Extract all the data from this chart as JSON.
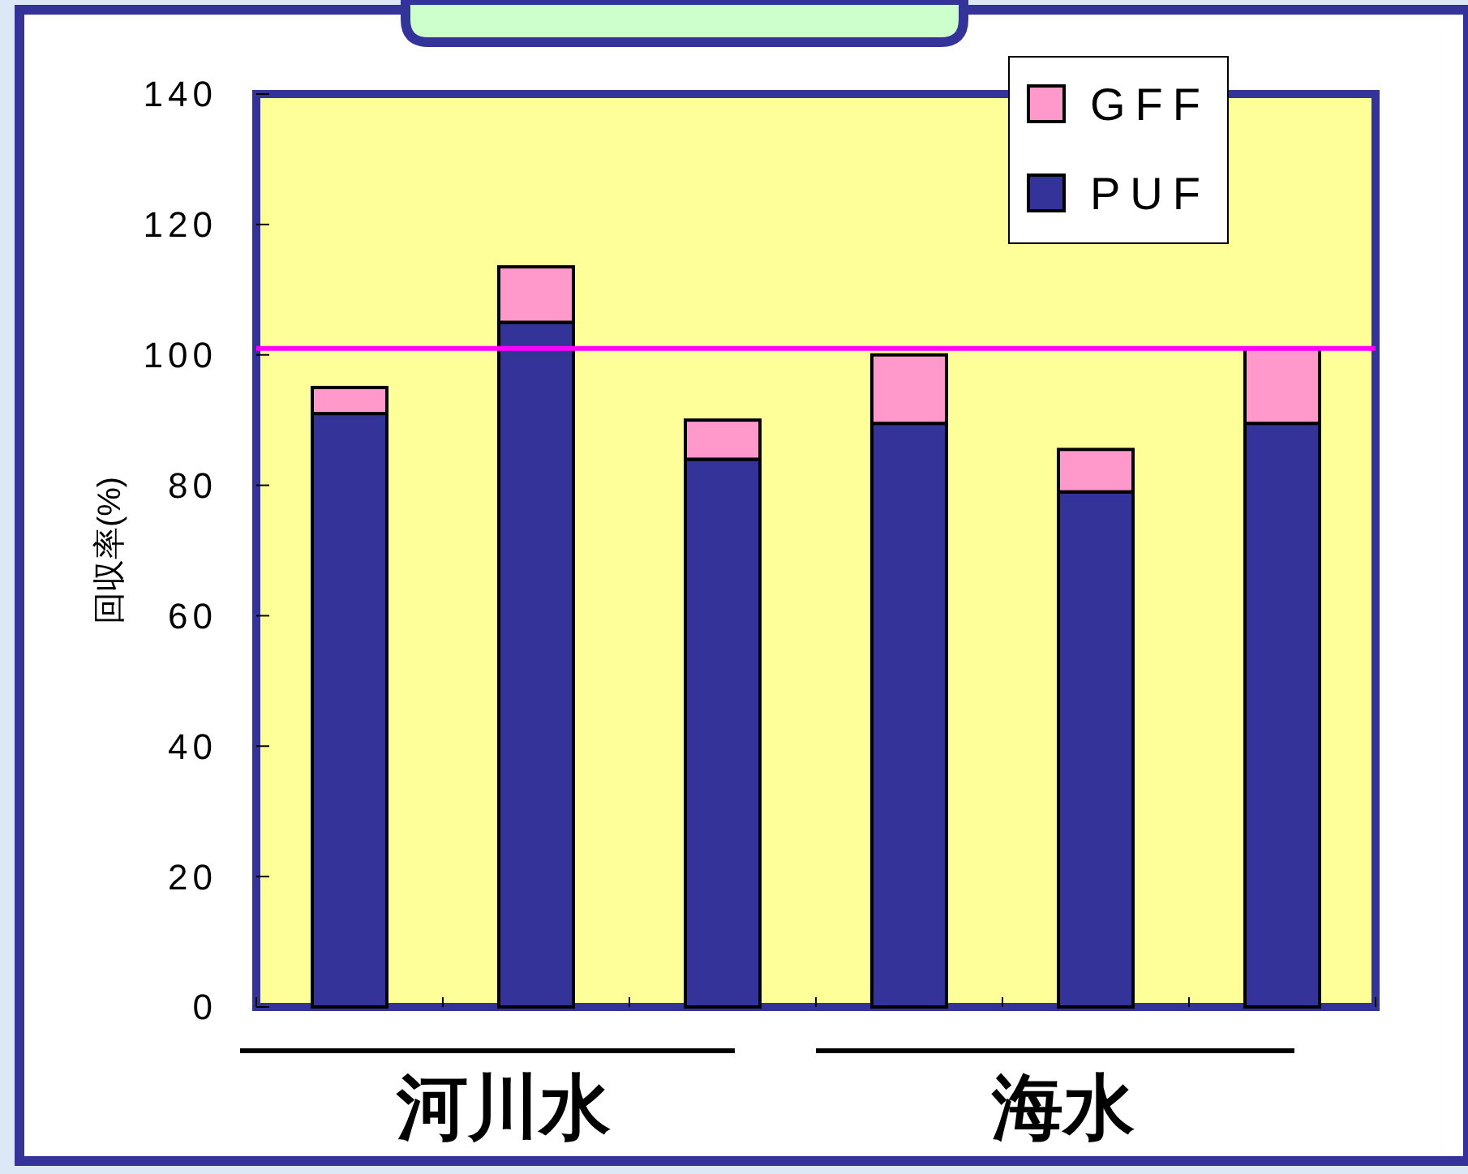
{
  "chart_data": {
    "type": "bar",
    "stacked": true,
    "ylabel": "回収率(%)",
    "categories": [
      null,
      null,
      null,
      null,
      null,
      null
    ],
    "series": [
      {
        "name": "PUF",
        "color": "#333399",
        "values": [
          91,
          105,
          84,
          89.5,
          79,
          89.5
        ]
      },
      {
        "name": "GFF",
        "color": "#ff99cc",
        "values": [
          4,
          8.5,
          6,
          10.5,
          6.5,
          11.5
        ]
      }
    ],
    "ylim": [
      0,
      140
    ],
    "yticks": [
      0,
      20,
      40,
      60,
      80,
      100,
      120,
      140
    ],
    "grid": false,
    "legend": "top right",
    "ref_lines": [
      {
        "axis": "y",
        "value": 101,
        "color": "#ff00ff"
      }
    ],
    "annotations": [
      "河川水",
      "海水"
    ]
  }
}
